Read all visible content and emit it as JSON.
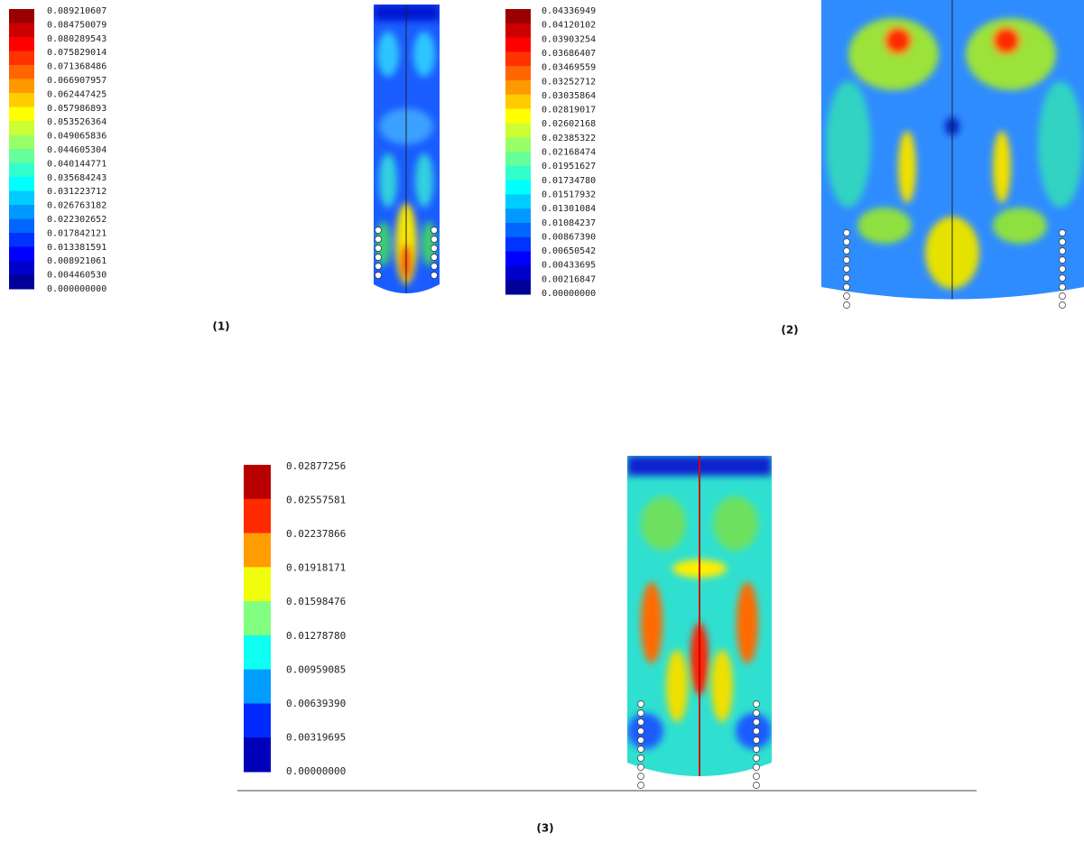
{
  "panels": [
    {
      "legend": [
        "0.089210607",
        "0.084750079",
        "0.080289543",
        "0.075829014",
        "0.071368486",
        "0.066907957",
        "0.062447425",
        "0.057986893",
        "0.053526364",
        "0.049065836",
        "0.044605304",
        "0.040144771",
        "0.035684243",
        "0.031223712",
        "0.026763182",
        "0.022302652",
        "0.017842121",
        "0.013381591",
        "0.008921061",
        "0.004460530",
        "0.000000000"
      ],
      "caption": "(1)"
    },
    {
      "legend": [
        "0.04336949",
        "0.04120102",
        "0.03903254",
        "0.03686407",
        "0.03469559",
        "0.03252712",
        "0.03035864",
        "0.02819017",
        "0.02602168",
        "0.02385322",
        "0.02168474",
        "0.01951627",
        "0.01734780",
        "0.01517932",
        "0.01301084",
        "0.01084237",
        "0.00867390",
        "0.00650542",
        "0.00433695",
        "0.00216847",
        "0.00000000"
      ],
      "caption": "(2)"
    },
    {
      "legend": [
        "0.02877256",
        "0.02557581",
        "0.02237866",
        "0.01918171",
        "0.01598476",
        "0.01278780",
        "0.00959085",
        "0.00639390",
        "0.00319695",
        "0.00000000"
      ],
      "caption": "(3)"
    }
  ]
}
